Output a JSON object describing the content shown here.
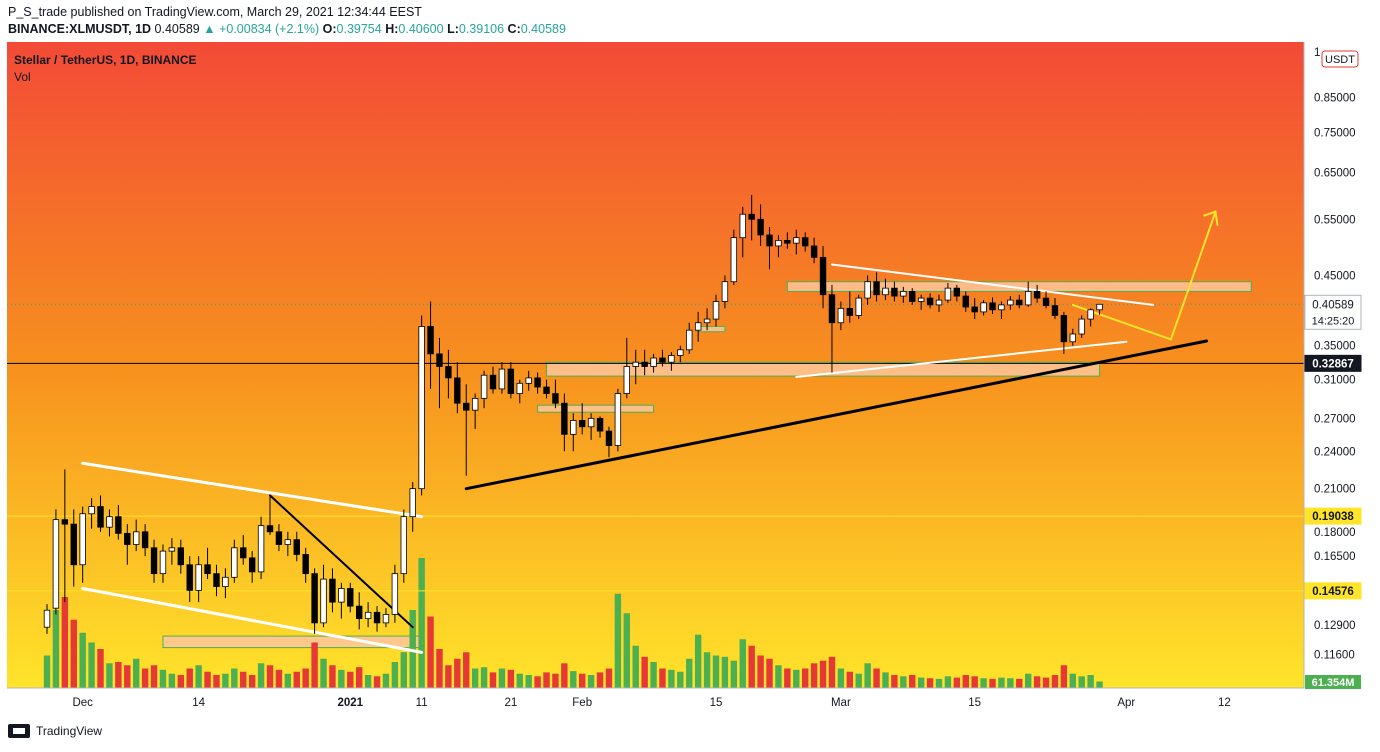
{
  "header": {
    "line1": "P_S_trade published on TradingView.com, March 29, 2021 12:34:44 EEST",
    "symbol": "BINANCE:XLMUSDT, 1D",
    "last": "0.40589",
    "change": "▲ +0.00834 (+2.1%)",
    "o_label": "O:",
    "o": "0.39754",
    "h_label": "H:",
    "h": "0.40600",
    "l_label": "L:",
    "l": "0.39106",
    "c_label": "C:",
    "c": "0.40589"
  },
  "legend": {
    "title": "Stellar / TetherUS, 1D, BINANCE",
    "vol": "Vol"
  },
  "footer": {
    "brand": "TradingView"
  },
  "colors": {
    "bg_top": "#f34a37",
    "bg_mid": "#f7901e",
    "bg_bottom": "#ffe42a",
    "up_candle": "#ffffff",
    "down_candle": "#000000",
    "vol_up": "#4caf50",
    "vol_down": "#e53935",
    "zone_fill": "#ffc69b",
    "zone_stroke": "#4caf50"
  },
  "chart_data": {
    "type": "candlestick",
    "title": "Stellar / TetherUS, 1D, BINANCE",
    "currency": "USDT",
    "scale": "log",
    "ylim": [
      0.103,
      1.0
    ],
    "y_ticks": [
      "1",
      "0.85000",
      "0.75000",
      "0.65000",
      "0.55000",
      "0.45000",
      "0.35000",
      "0.31000",
      "0.27000",
      "0.24000",
      "0.21000",
      "0.18000",
      "0.16500",
      "0.12900",
      "0.11600"
    ],
    "y_tick_values": [
      1.0,
      0.85,
      0.75,
      0.65,
      0.55,
      0.45,
      0.35,
      0.31,
      0.27,
      0.24,
      0.21,
      0.18,
      0.165,
      0.129,
      0.116
    ],
    "x_ticks": [
      "Dec",
      "14",
      "2021",
      "11",
      "21",
      "Feb",
      "15",
      "Mar",
      "15",
      "Apr",
      "12"
    ],
    "x_tick_offsets_days": [
      4,
      17,
      34,
      42,
      52,
      60,
      75,
      89,
      104,
      121,
      132
    ],
    "first_date": "2020-11-27",
    "current_price": "0.40589",
    "countdown": "14:25:20",
    "volume_label": "61.354M",
    "levels": [
      {
        "price": 0.19038,
        "label": "0.19038",
        "color": "#ffe42a"
      },
      {
        "price": 0.14576,
        "label": "0.14576",
        "color": "#ffe42a"
      },
      {
        "price": 0.32867,
        "label": "0.32867",
        "color": "#000000"
      }
    ],
    "zones": [
      {
        "y_low": 0.425,
        "y_high": 0.44,
        "from_day": 83,
        "to_day": 135
      },
      {
        "y_low": 0.314,
        "y_high": 0.33,
        "from_day": 56,
        "to_day": 118
      },
      {
        "y_low": 0.119,
        "y_high": 0.124,
        "from_day": 13,
        "to_day": 42
      },
      {
        "y_low": 0.276,
        "y_high": 0.283,
        "from_day": 55,
        "to_day": 68
      },
      {
        "y_low": 0.368,
        "y_high": 0.375,
        "from_day": 73,
        "to_day": 76
      }
    ],
    "lines": [
      {
        "from_day": 4,
        "from_y": 0.23,
        "to_day": 42,
        "to_y": 0.19,
        "color": "#ffffff",
        "width": 3
      },
      {
        "from_day": 4,
        "from_y": 0.147,
        "to_day": 42,
        "to_y": 0.117,
        "color": "#ffffff",
        "width": 3
      },
      {
        "from_day": 25,
        "from_y": 0.205,
        "to_day": 41,
        "to_y": 0.128,
        "color": "#000000",
        "width": 2
      },
      {
        "from_day": 47,
        "from_y": 0.21,
        "to_day": 130,
        "to_y": 0.356,
        "color": "#000000",
        "width": 3
      },
      {
        "from_day": 88,
        "from_y": 0.468,
        "to_day": 124,
        "to_y": 0.405,
        "color": "#ffffff",
        "width": 2
      },
      {
        "from_day": 84,
        "from_y": 0.313,
        "to_day": 121,
        "to_y": 0.355,
        "color": "#ffffff",
        "width": 2
      },
      {
        "from_day": 115,
        "from_y": 0.405,
        "to_day": 126,
        "to_y": 0.358,
        "color": "#ffe42a",
        "width": 2
      },
      {
        "from_day": 126,
        "from_y": 0.358,
        "to_day": 131,
        "to_y": 0.565,
        "color": "#ffe42a",
        "width": 2
      }
    ],
    "candles": [
      [
        0.128,
        0.139,
        0.125,
        0.136,
        50
      ],
      [
        0.137,
        0.195,
        0.134,
        0.188,
        120
      ],
      [
        0.188,
        0.225,
        0.14,
        0.185,
        140
      ],
      [
        0.185,
        0.195,
        0.148,
        0.16,
        105
      ],
      [
        0.16,
        0.197,
        0.15,
        0.192,
        85
      ],
      [
        0.192,
        0.203,
        0.182,
        0.197,
        70
      ],
      [
        0.197,
        0.205,
        0.18,
        0.183,
        60
      ],
      [
        0.183,
        0.195,
        0.177,
        0.19,
        38
      ],
      [
        0.19,
        0.198,
        0.175,
        0.179,
        40
      ],
      [
        0.179,
        0.185,
        0.16,
        0.172,
        35
      ],
      [
        0.172,
        0.188,
        0.168,
        0.18,
        45
      ],
      [
        0.18,
        0.185,
        0.165,
        0.17,
        30
      ],
      [
        0.17,
        0.175,
        0.15,
        0.155,
        35
      ],
      [
        0.155,
        0.172,
        0.15,
        0.168,
        28
      ],
      [
        0.168,
        0.176,
        0.16,
        0.17,
        22
      ],
      [
        0.17,
        0.175,
        0.155,
        0.16,
        20
      ],
      [
        0.16,
        0.165,
        0.14,
        0.146,
        30
      ],
      [
        0.146,
        0.165,
        0.14,
        0.16,
        35
      ],
      [
        0.16,
        0.17,
        0.152,
        0.155,
        25
      ],
      [
        0.155,
        0.16,
        0.143,
        0.148,
        20
      ],
      [
        0.148,
        0.158,
        0.142,
        0.153,
        22
      ],
      [
        0.153,
        0.175,
        0.15,
        0.17,
        30
      ],
      [
        0.17,
        0.178,
        0.16,
        0.164,
        25
      ],
      [
        0.164,
        0.168,
        0.15,
        0.156,
        20
      ],
      [
        0.156,
        0.19,
        0.152,
        0.184,
        38
      ],
      [
        0.184,
        0.205,
        0.178,
        0.18,
        35
      ],
      [
        0.18,
        0.185,
        0.168,
        0.172,
        28
      ],
      [
        0.172,
        0.18,
        0.165,
        0.175,
        22
      ],
      [
        0.175,
        0.18,
        0.162,
        0.166,
        25
      ],
      [
        0.166,
        0.17,
        0.15,
        0.155,
        30
      ],
      [
        0.155,
        0.158,
        0.125,
        0.13,
        70
      ],
      [
        0.13,
        0.16,
        0.128,
        0.152,
        45
      ],
      [
        0.152,
        0.158,
        0.135,
        0.14,
        35
      ],
      [
        0.14,
        0.15,
        0.132,
        0.147,
        28
      ],
      [
        0.147,
        0.15,
        0.135,
        0.138,
        25
      ],
      [
        0.138,
        0.145,
        0.127,
        0.132,
        32
      ],
      [
        0.132,
        0.14,
        0.128,
        0.135,
        20
      ],
      [
        0.135,
        0.138,
        0.126,
        0.13,
        18
      ],
      [
        0.13,
        0.137,
        0.128,
        0.134,
        22
      ],
      [
        0.134,
        0.16,
        0.13,
        0.155,
        40
      ],
      [
        0.155,
        0.195,
        0.15,
        0.19,
        55
      ],
      [
        0.19,
        0.215,
        0.18,
        0.21,
        120
      ],
      [
        0.21,
        0.39,
        0.205,
        0.375,
        200
      ],
      [
        0.375,
        0.41,
        0.3,
        0.34,
        110
      ],
      [
        0.34,
        0.36,
        0.28,
        0.325,
        60
      ],
      [
        0.325,
        0.345,
        0.29,
        0.312,
        35
      ],
      [
        0.312,
        0.33,
        0.275,
        0.285,
        45
      ],
      [
        0.285,
        0.305,
        0.22,
        0.278,
        55
      ],
      [
        0.278,
        0.295,
        0.26,
        0.29,
        30
      ],
      [
        0.29,
        0.32,
        0.28,
        0.315,
        32
      ],
      [
        0.315,
        0.325,
        0.295,
        0.3,
        24
      ],
      [
        0.3,
        0.33,
        0.295,
        0.322,
        30
      ],
      [
        0.322,
        0.33,
        0.29,
        0.295,
        28
      ],
      [
        0.295,
        0.31,
        0.285,
        0.306,
        22
      ],
      [
        0.306,
        0.32,
        0.298,
        0.312,
        20
      ],
      [
        0.312,
        0.318,
        0.295,
        0.302,
        18
      ],
      [
        0.302,
        0.31,
        0.29,
        0.295,
        24
      ],
      [
        0.295,
        0.31,
        0.28,
        0.285,
        22
      ],
      [
        0.285,
        0.295,
        0.24,
        0.255,
        38
      ],
      [
        0.255,
        0.275,
        0.24,
        0.268,
        26
      ],
      [
        0.268,
        0.285,
        0.255,
        0.262,
        22
      ],
      [
        0.262,
        0.275,
        0.25,
        0.27,
        20
      ],
      [
        0.27,
        0.272,
        0.252,
        0.258,
        24
      ],
      [
        0.258,
        0.262,
        0.235,
        0.245,
        30
      ],
      [
        0.245,
        0.3,
        0.24,
        0.295,
        145
      ],
      [
        0.295,
        0.36,
        0.29,
        0.325,
        115
      ],
      [
        0.325,
        0.345,
        0.305,
        0.33,
        65
      ],
      [
        0.33,
        0.345,
        0.315,
        0.325,
        48
      ],
      [
        0.325,
        0.34,
        0.318,
        0.335,
        40
      ],
      [
        0.335,
        0.345,
        0.325,
        0.33,
        30
      ],
      [
        0.33,
        0.342,
        0.32,
        0.338,
        28
      ],
      [
        0.338,
        0.35,
        0.33,
        0.345,
        25
      ],
      [
        0.345,
        0.38,
        0.34,
        0.37,
        45
      ],
      [
        0.37,
        0.395,
        0.355,
        0.38,
        82
      ],
      [
        0.38,
        0.4,
        0.37,
        0.385,
        55
      ],
      [
        0.385,
        0.42,
        0.375,
        0.41,
        50
      ],
      [
        0.41,
        0.45,
        0.4,
        0.44,
        48
      ],
      [
        0.44,
        0.53,
        0.435,
        0.515,
        42
      ],
      [
        0.515,
        0.575,
        0.48,
        0.56,
        75
      ],
      [
        0.56,
        0.6,
        0.51,
        0.55,
        65
      ],
      [
        0.55,
        0.58,
        0.5,
        0.52,
        50
      ],
      [
        0.52,
        0.535,
        0.46,
        0.5,
        45
      ],
      [
        0.5,
        0.52,
        0.48,
        0.51,
        35
      ],
      [
        0.51,
        0.525,
        0.495,
        0.505,
        30
      ],
      [
        0.505,
        0.53,
        0.485,
        0.515,
        28
      ],
      [
        0.515,
        0.525,
        0.49,
        0.5,
        30
      ],
      [
        0.5,
        0.515,
        0.47,
        0.48,
        38
      ],
      [
        0.48,
        0.5,
        0.4,
        0.42,
        42
      ],
      [
        0.42,
        0.435,
        0.318,
        0.38,
        48
      ],
      [
        0.38,
        0.41,
        0.37,
        0.4,
        30
      ],
      [
        0.4,
        0.425,
        0.38,
        0.39,
        25
      ],
      [
        0.39,
        0.42,
        0.385,
        0.415,
        22
      ],
      [
        0.415,
        0.45,
        0.405,
        0.44,
        38
      ],
      [
        0.44,
        0.455,
        0.41,
        0.42,
        30
      ],
      [
        0.42,
        0.445,
        0.412,
        0.43,
        24
      ],
      [
        0.43,
        0.44,
        0.41,
        0.418,
        20
      ],
      [
        0.418,
        0.432,
        0.408,
        0.425,
        18
      ],
      [
        0.425,
        0.43,
        0.405,
        0.41,
        20
      ],
      [
        0.41,
        0.42,
        0.398,
        0.415,
        16
      ],
      [
        0.415,
        0.422,
        0.4,
        0.405,
        15
      ],
      [
        0.405,
        0.42,
        0.395,
        0.412,
        14
      ],
      [
        0.412,
        0.438,
        0.408,
        0.43,
        18
      ],
      [
        0.43,
        0.435,
        0.41,
        0.418,
        16
      ],
      [
        0.418,
        0.425,
        0.395,
        0.402,
        20
      ],
      [
        0.402,
        0.415,
        0.385,
        0.395,
        18
      ],
      [
        0.395,
        0.412,
        0.39,
        0.408,
        15
      ],
      [
        0.408,
        0.416,
        0.392,
        0.398,
        14
      ],
      [
        0.398,
        0.41,
        0.385,
        0.405,
        16
      ],
      [
        0.405,
        0.418,
        0.398,
        0.412,
        15
      ],
      [
        0.412,
        0.42,
        0.4,
        0.405,
        14
      ],
      [
        0.405,
        0.44,
        0.402,
        0.425,
        22
      ],
      [
        0.425,
        0.435,
        0.408,
        0.415,
        18
      ],
      [
        0.415,
        0.425,
        0.4,
        0.404,
        16
      ],
      [
        0.404,
        0.415,
        0.385,
        0.39,
        20
      ],
      [
        0.39,
        0.395,
        0.34,
        0.355,
        35
      ],
      [
        0.355,
        0.372,
        0.35,
        0.365,
        22
      ],
      [
        0.365,
        0.39,
        0.36,
        0.385,
        18
      ],
      [
        0.385,
        0.4,
        0.375,
        0.398,
        20
      ],
      [
        0.398,
        0.406,
        0.391,
        0.4059,
        10
      ]
    ]
  }
}
